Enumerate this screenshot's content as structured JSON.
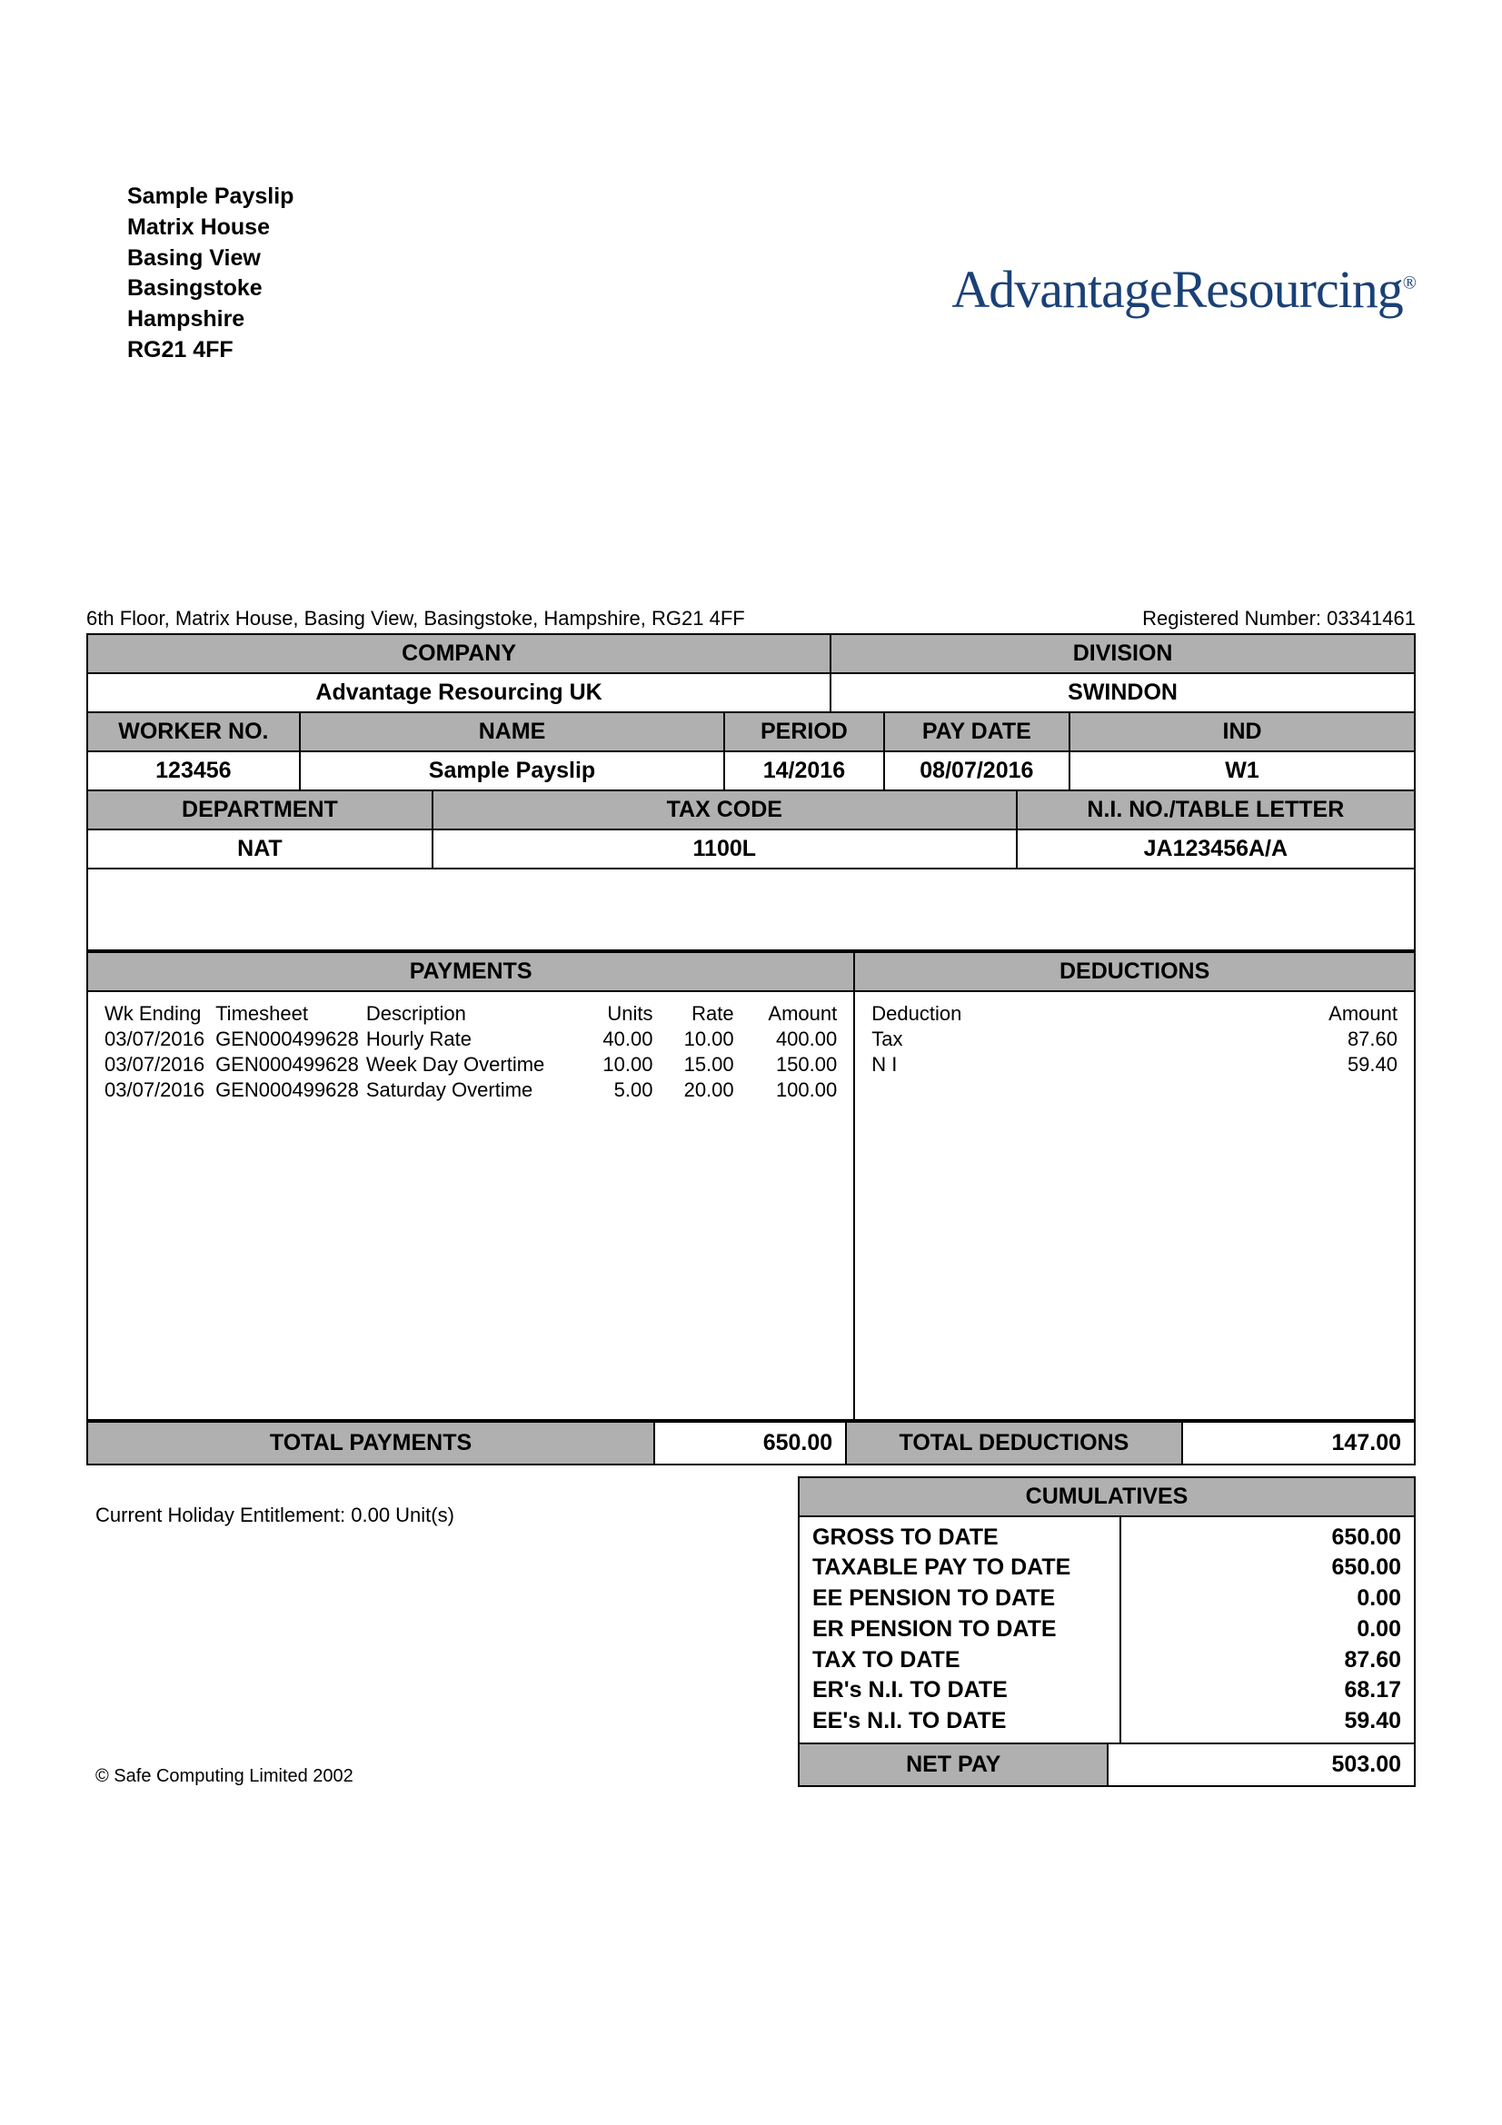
{
  "address": {
    "line1": "Sample Payslip",
    "line2": "Matrix House",
    "line3": "Basing View",
    "line4": "Basingstoke",
    "line5": "Hampshire",
    "line6": "RG21 4FF"
  },
  "logo": {
    "part1": "Advantage",
    "part2": "Resourcing",
    "reg": "®"
  },
  "meta": {
    "left": "6th Floor, Matrix House, Basing View, Basingstoke, Hampshire, RG21 4FF",
    "right": "Registered Number: 03341461"
  },
  "headers": {
    "company": "COMPANY",
    "division": "DIVISION",
    "workerNo": "WORKER NO.",
    "name": "NAME",
    "period": "PERIOD",
    "payDate": "PAY DATE",
    "ind": "IND",
    "department": "DEPARTMENT",
    "taxCode": "TAX CODE",
    "niNo": "N.I. NO./TABLE LETTER",
    "payments": "PAYMENTS",
    "deductions": "DEDUCTIONS",
    "totalPayments": "TOTAL PAYMENTS",
    "totalDeductions": "TOTAL DEDUCTIONS",
    "cumulatives": "CUMULATIVES",
    "netPay": "NET PAY"
  },
  "info": {
    "company": "Advantage Resourcing UK",
    "division": "SWINDON",
    "workerNo": "123456",
    "name": "Sample Payslip",
    "period": "14/2016",
    "payDate": "08/07/2016",
    "ind": "W1",
    "department": "NAT",
    "taxCode": "1100L",
    "niNo": "JA123456A/A"
  },
  "paymentsCols": {
    "wkEnding": "Wk Ending",
    "timesheet": "Timesheet",
    "description": "Description",
    "units": "Units",
    "rate": "Rate",
    "amount": "Amount"
  },
  "payments": [
    {
      "wk": "03/07/2016",
      "ts": "GEN000499628",
      "desc": "Hourly Rate",
      "units": "40.00",
      "rate": "10.00",
      "amount": "400.00"
    },
    {
      "wk": "03/07/2016",
      "ts": "GEN000499628",
      "desc": "Week Day Overtime",
      "units": "10.00",
      "rate": "15.00",
      "amount": "150.00"
    },
    {
      "wk": "03/07/2016",
      "ts": "GEN000499628",
      "desc": "Saturday Overtime",
      "units": "5.00",
      "rate": "20.00",
      "amount": "100.00"
    }
  ],
  "deductionsCols": {
    "deduction": "Deduction",
    "amount": "Amount"
  },
  "deductions": [
    {
      "name": "Tax",
      "amount": "87.60"
    },
    {
      "name": "N I",
      "amount": "59.40"
    }
  ],
  "totals": {
    "payments": "650.00",
    "deductions": "147.00"
  },
  "holiday": "Current Holiday Entitlement:   0.00 Unit(s)",
  "cumulatives": [
    {
      "label": "GROSS TO DATE",
      "value": "650.00"
    },
    {
      "label": "TAXABLE PAY TO DATE",
      "value": "650.00"
    },
    {
      "label": "EE PENSION TO DATE",
      "value": "0.00"
    },
    {
      "label": "ER PENSION TO DATE",
      "value": "0.00"
    },
    {
      "label": "TAX TO DATE",
      "value": "87.60"
    },
    {
      "label": "ER's N.I. TO DATE",
      "value": "68.17"
    },
    {
      "label": "EE's N.I. TO DATE",
      "value": "59.40"
    }
  ],
  "netPay": "503.00",
  "copyright": "© Safe Computing Limited 2002"
}
